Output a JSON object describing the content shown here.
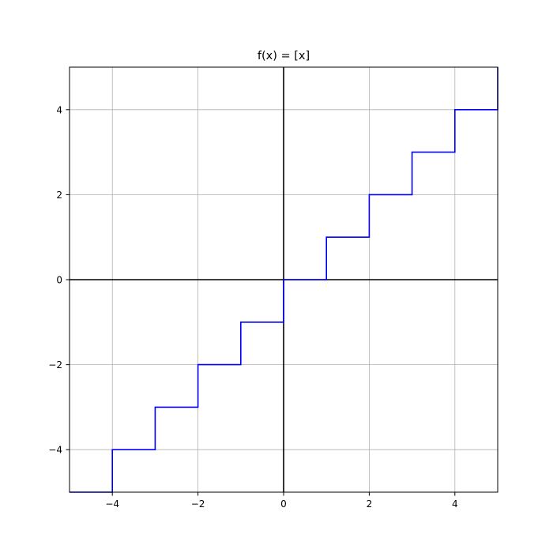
{
  "chart_data": {
    "type": "line",
    "title": "f(x) = [x]",
    "xlabel": "",
    "ylabel": "",
    "xlim": [
      -5,
      5
    ],
    "ylim": [
      -5,
      5
    ],
    "grid": true,
    "axes_lines_at_zero": true,
    "xticks": [
      -4,
      -2,
      0,
      2,
      4
    ],
    "yticks": [
      -4,
      -2,
      0,
      2,
      4
    ],
    "xtick_labels": [
      "−4",
      "−2",
      "0",
      "2",
      "4"
    ],
    "ytick_labels": [
      "−4",
      "−2",
      "0",
      "2",
      "4"
    ],
    "series": [
      {
        "color": "#0000ff",
        "step": true,
        "x": [
          -5,
          -4,
          -3,
          -2,
          -1,
          0,
          1,
          2,
          3,
          4,
          5
        ],
        "y": [
          -5,
          -4,
          -3,
          -2,
          -1,
          0,
          1,
          2,
          3,
          4,
          5
        ]
      }
    ],
    "colors": {
      "line": "#0000ff",
      "grid": "#b0b0b0",
      "axis_zero": "#000000",
      "frame": "#000000"
    }
  }
}
